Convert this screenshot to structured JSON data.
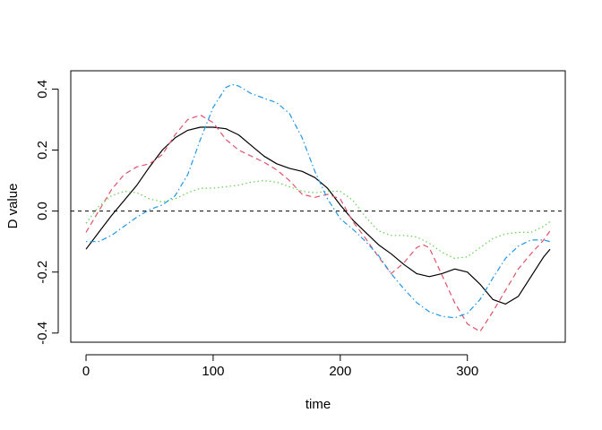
{
  "chart_data": {
    "type": "line",
    "title": "",
    "xlabel": "time",
    "ylabel": "D value",
    "xlim": [
      -12,
      377
    ],
    "ylim": [
      -0.43,
      0.46
    ],
    "x_ticks": [
      "0",
      "100",
      "200",
      "300"
    ],
    "x_tick_values": [
      0,
      100,
      200,
      300
    ],
    "y_ticks": [
      "-0.4",
      "-0.2",
      "0.0",
      "0.2",
      "0.4"
    ],
    "y_tick_values": [
      -0.4,
      -0.2,
      0.0,
      0.2,
      0.4
    ],
    "grid": false,
    "legend": "none",
    "reference_line": {
      "y": 0.0,
      "color": "#000000",
      "style": "dashed"
    },
    "series": [
      {
        "color": "#000000",
        "style": "solid",
        "points": [
          [
            0,
            -0.125
          ],
          [
            10,
            -0.07
          ],
          [
            20,
            -0.015
          ],
          [
            30,
            0.035
          ],
          [
            40,
            0.085
          ],
          [
            50,
            0.145
          ],
          [
            60,
            0.2
          ],
          [
            70,
            0.24
          ],
          [
            80,
            0.265
          ],
          [
            90,
            0.275
          ],
          [
            100,
            0.275
          ],
          [
            110,
            0.27
          ],
          [
            120,
            0.25
          ],
          [
            130,
            0.215
          ],
          [
            140,
            0.18
          ],
          [
            150,
            0.155
          ],
          [
            160,
            0.14
          ],
          [
            170,
            0.13
          ],
          [
            180,
            0.11
          ],
          [
            190,
            0.075
          ],
          [
            200,
            0.02
          ],
          [
            210,
            -0.03
          ],
          [
            220,
            -0.07
          ],
          [
            230,
            -0.11
          ],
          [
            240,
            -0.14
          ],
          [
            250,
            -0.175
          ],
          [
            260,
            -0.205
          ],
          [
            270,
            -0.215
          ],
          [
            280,
            -0.205
          ],
          [
            290,
            -0.19
          ],
          [
            300,
            -0.2
          ],
          [
            310,
            -0.24
          ],
          [
            320,
            -0.29
          ],
          [
            330,
            -0.305
          ],
          [
            340,
            -0.28
          ],
          [
            350,
            -0.215
          ],
          [
            360,
            -0.15
          ],
          [
            365,
            -0.125
          ]
        ]
      },
      {
        "color": "#DF536B",
        "style": "dashed",
        "points": [
          [
            0,
            -0.07
          ],
          [
            10,
            0.0
          ],
          [
            20,
            0.07
          ],
          [
            30,
            0.12
          ],
          [
            40,
            0.145
          ],
          [
            50,
            0.155
          ],
          [
            60,
            0.185
          ],
          [
            70,
            0.25
          ],
          [
            80,
            0.3
          ],
          [
            90,
            0.315
          ],
          [
            100,
            0.29
          ],
          [
            110,
            0.235
          ],
          [
            120,
            0.2
          ],
          [
            130,
            0.18
          ],
          [
            140,
            0.16
          ],
          [
            150,
            0.135
          ],
          [
            160,
            0.1
          ],
          [
            170,
            0.055
          ],
          [
            180,
            0.045
          ],
          [
            190,
            0.055
          ],
          [
            200,
            0.04
          ],
          [
            210,
            -0.035
          ],
          [
            220,
            -0.09
          ],
          [
            230,
            -0.15
          ],
          [
            240,
            -0.205
          ],
          [
            250,
            -0.17
          ],
          [
            260,
            -0.12
          ],
          [
            265,
            -0.11
          ],
          [
            270,
            -0.12
          ],
          [
            280,
            -0.21
          ],
          [
            290,
            -0.3
          ],
          [
            300,
            -0.37
          ],
          [
            310,
            -0.395
          ],
          [
            320,
            -0.33
          ],
          [
            330,
            -0.26
          ],
          [
            340,
            -0.19
          ],
          [
            350,
            -0.14
          ],
          [
            360,
            -0.095
          ],
          [
            365,
            -0.065
          ]
        ]
      },
      {
        "color": "#61D04F",
        "style": "dotted",
        "points": [
          [
            0,
            -0.04
          ],
          [
            10,
            0.015
          ],
          [
            20,
            0.05
          ],
          [
            30,
            0.065
          ],
          [
            40,
            0.06
          ],
          [
            50,
            0.04
          ],
          [
            60,
            0.03
          ],
          [
            70,
            0.04
          ],
          [
            80,
            0.06
          ],
          [
            90,
            0.075
          ],
          [
            100,
            0.075
          ],
          [
            110,
            0.08
          ],
          [
            120,
            0.085
          ],
          [
            130,
            0.095
          ],
          [
            140,
            0.1
          ],
          [
            150,
            0.095
          ],
          [
            160,
            0.08
          ],
          [
            170,
            0.065
          ],
          [
            180,
            0.06
          ],
          [
            190,
            0.065
          ],
          [
            200,
            0.065
          ],
          [
            210,
            0.035
          ],
          [
            220,
            -0.02
          ],
          [
            230,
            -0.065
          ],
          [
            240,
            -0.08
          ],
          [
            250,
            -0.08
          ],
          [
            260,
            -0.085
          ],
          [
            270,
            -0.105
          ],
          [
            280,
            -0.135
          ],
          [
            290,
            -0.155
          ],
          [
            300,
            -0.15
          ],
          [
            310,
            -0.12
          ],
          [
            320,
            -0.09
          ],
          [
            330,
            -0.075
          ],
          [
            340,
            -0.07
          ],
          [
            350,
            -0.07
          ],
          [
            360,
            -0.05
          ],
          [
            365,
            -0.035
          ]
        ]
      },
      {
        "color": "#2297E6",
        "style": "dot-dash",
        "points": [
          [
            0,
            -0.1
          ],
          [
            10,
            -0.1
          ],
          [
            20,
            -0.08
          ],
          [
            30,
            -0.05
          ],
          [
            40,
            -0.02
          ],
          [
            50,
            0.005
          ],
          [
            60,
            0.02
          ],
          [
            70,
            0.05
          ],
          [
            80,
            0.12
          ],
          [
            90,
            0.235
          ],
          [
            100,
            0.34
          ],
          [
            110,
            0.405
          ],
          [
            115,
            0.415
          ],
          [
            120,
            0.41
          ],
          [
            130,
            0.385
          ],
          [
            140,
            0.37
          ],
          [
            150,
            0.355
          ],
          [
            160,
            0.32
          ],
          [
            170,
            0.24
          ],
          [
            180,
            0.13
          ],
          [
            190,
            0.04
          ],
          [
            200,
            -0.025
          ],
          [
            210,
            -0.06
          ],
          [
            220,
            -0.1
          ],
          [
            230,
            -0.145
          ],
          [
            240,
            -0.205
          ],
          [
            250,
            -0.255
          ],
          [
            260,
            -0.3
          ],
          [
            270,
            -0.33
          ],
          [
            280,
            -0.345
          ],
          [
            290,
            -0.35
          ],
          [
            300,
            -0.335
          ],
          [
            310,
            -0.29
          ],
          [
            320,
            -0.22
          ],
          [
            330,
            -0.155
          ],
          [
            340,
            -0.115
          ],
          [
            350,
            -0.095
          ],
          [
            360,
            -0.095
          ],
          [
            365,
            -0.1
          ]
        ]
      }
    ]
  }
}
